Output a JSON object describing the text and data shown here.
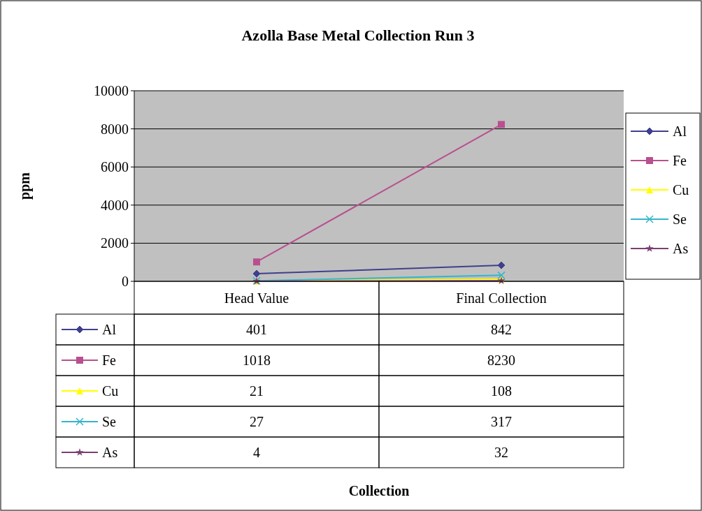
{
  "chart_data": {
    "type": "line",
    "title": "Azolla Base Metal Collection Run 3",
    "annotations": [
      "Collection"
    ],
    "ylabel": "ppm",
    "categories": [
      "Head Value",
      "Final Collection"
    ],
    "series": [
      {
        "name": "Al",
        "color": "#3f3f8f",
        "marker": "diamond",
        "values": [
          401,
          842
        ]
      },
      {
        "name": "Fe",
        "color": "#b8508f",
        "marker": "square",
        "values": [
          1018,
          8230
        ]
      },
      {
        "name": "Cu",
        "color": "#ffff00",
        "marker": "triangle",
        "values": [
          21,
          108
        ]
      },
      {
        "name": "Se",
        "color": "#33b5cc",
        "marker": "cross",
        "values": [
          27,
          317
        ]
      },
      {
        "name": "As",
        "color": "#7a3f70",
        "marker": "star",
        "values": [
          4,
          32
        ]
      }
    ],
    "ylim": [
      0,
      10000
    ],
    "yticks": [
      0,
      2000,
      4000,
      6000,
      8000,
      10000
    ],
    "grid": "y",
    "legend": "right",
    "data_labels": true
  }
}
